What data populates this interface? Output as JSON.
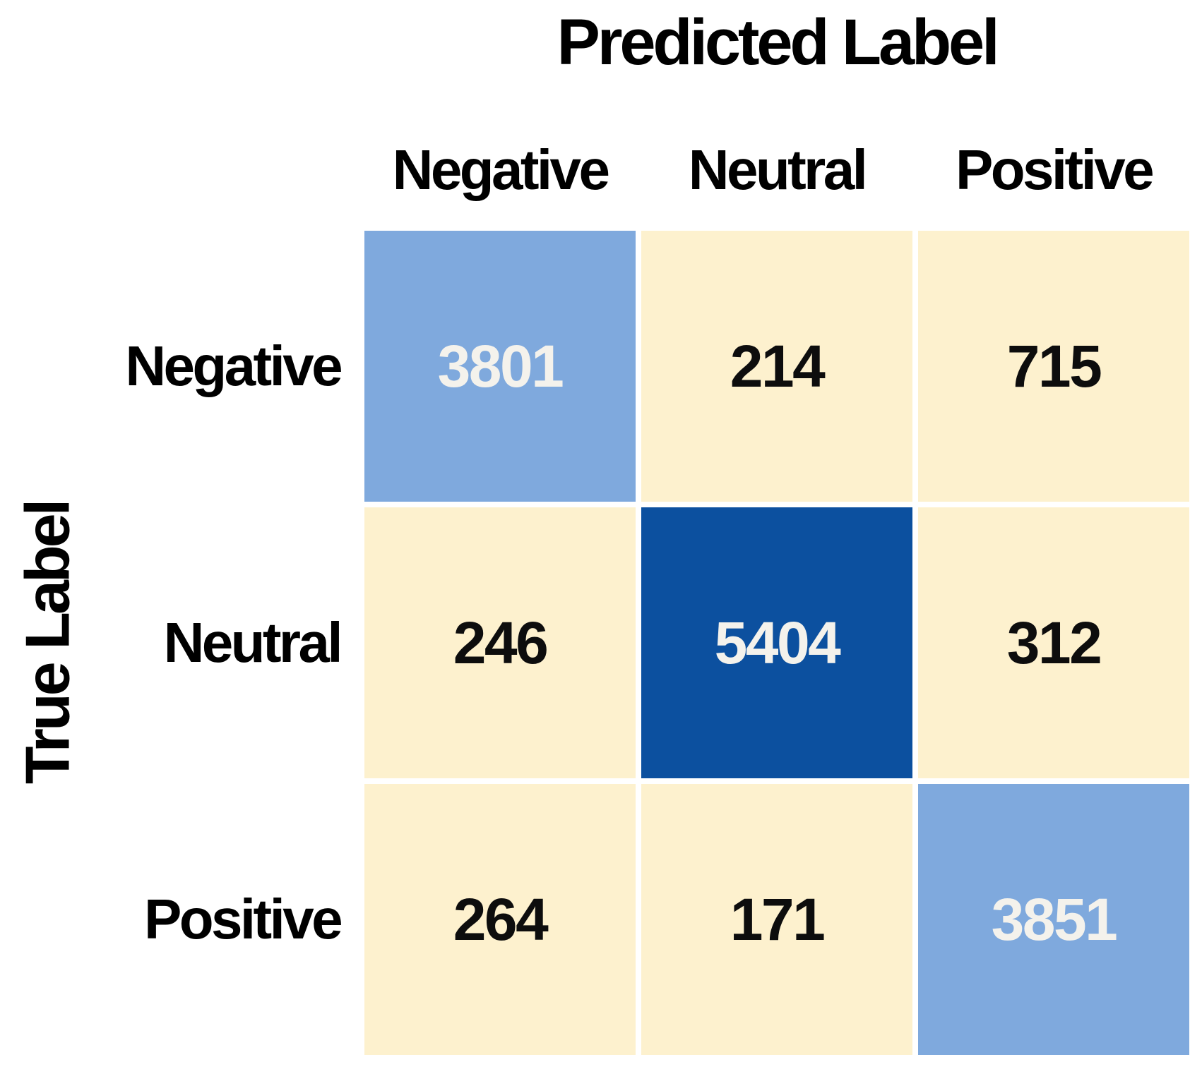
{
  "chart_data": {
    "type": "heatmap",
    "title": "Predicted Label",
    "xlabel": "Predicted Label",
    "ylabel": "True Label",
    "x_categories": [
      "Negative",
      "Neutral",
      "Positive"
    ],
    "y_categories": [
      "Negative",
      "Neutral",
      "Positive"
    ],
    "matrix": [
      [
        3801,
        214,
        715
      ],
      [
        246,
        5404,
        312
      ],
      [
        264,
        171,
        3851
      ]
    ],
    "layout": {
      "x_axis_title_position": "top",
      "y_axis_title_position": "left-rotated",
      "grid": "off",
      "legend": "none",
      "cell_gap_color": "#FFFFFF"
    },
    "colors": {
      "diagonal_light_blue": "#7FA9DD",
      "diagonal_dark_blue": "#0C509F",
      "off_diagonal_cream": "#FDF1CE",
      "text_on_blue": "#F4F2EC",
      "text_on_cream": "#0D0D0D",
      "axis_text": "#000000",
      "background": "#FFFFFF"
    }
  }
}
